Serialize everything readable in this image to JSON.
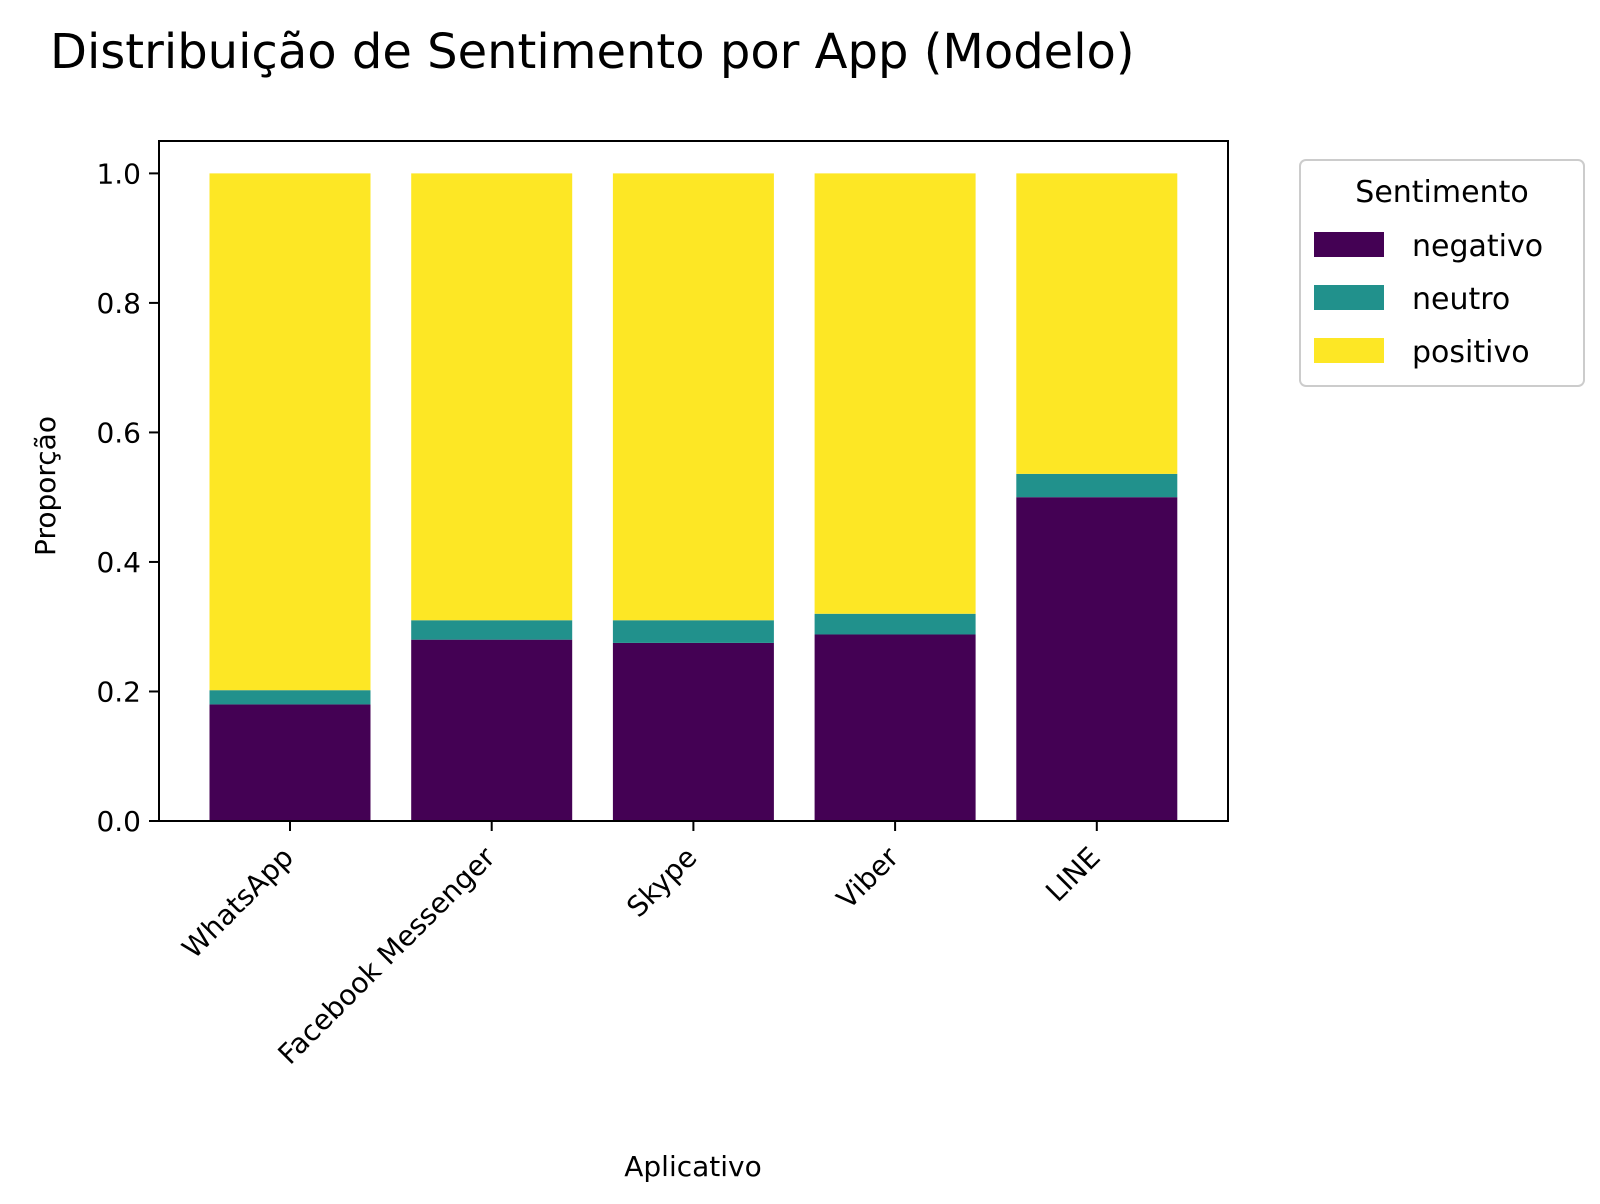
{
  "chart_data": {
    "type": "bar",
    "stacked": true,
    "title": "Distribuição de Sentimento por App (Modelo)",
    "xlabel": "Aplicativo",
    "ylabel": "Proporção",
    "ylim": [
      0,
      1.05
    ],
    "yticks": [
      "0.0",
      "0.2",
      "0.4",
      "0.6",
      "0.8",
      "1.0"
    ],
    "ytick_values": [
      0,
      0.2,
      0.4,
      0.6,
      0.8,
      1.0
    ],
    "categories": [
      "WhatsApp",
      "Facebook Messenger",
      "Skype",
      "Viber",
      "LINE"
    ],
    "series": [
      {
        "name": "negativo",
        "color": "#440154",
        "values": [
          0.18,
          0.28,
          0.275,
          0.288,
          0.5
        ]
      },
      {
        "name": "neutro",
        "color": "#21918c",
        "values": [
          0.022,
          0.03,
          0.035,
          0.032,
          0.036
        ]
      },
      {
        "name": "positivo",
        "color": "#fde725",
        "values": [
          0.798,
          0.69,
          0.69,
          0.68,
          0.464
        ]
      }
    ],
    "legend": {
      "title": "Sentimento",
      "position": "outside-right-top"
    },
    "grid": false
  }
}
